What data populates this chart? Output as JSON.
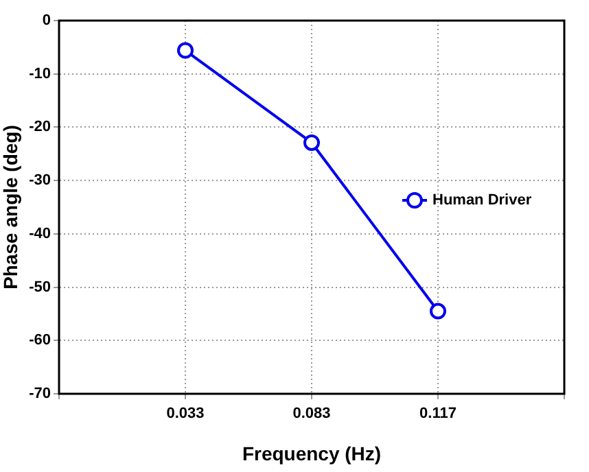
{
  "chart_data": {
    "type": "line",
    "xlabel": "Frequency (Hz)",
    "ylabel": "Phase angle (deg)",
    "categories": [
      null,
      "0.033",
      "0.083",
      "0.117",
      null
    ],
    "series": [
      {
        "name": "Human Driver",
        "color": "#0000ee",
        "values": [
          null,
          -5.6,
          -22.9,
          -54.5,
          null
        ]
      }
    ],
    "ylim": [
      -70,
      0
    ],
    "yticks": [
      0,
      -10,
      -20,
      -30,
      -40,
      -50,
      -60,
      -70
    ],
    "grid": true,
    "legend": "right",
    "marker": "circle",
    "line_style": "solid"
  }
}
